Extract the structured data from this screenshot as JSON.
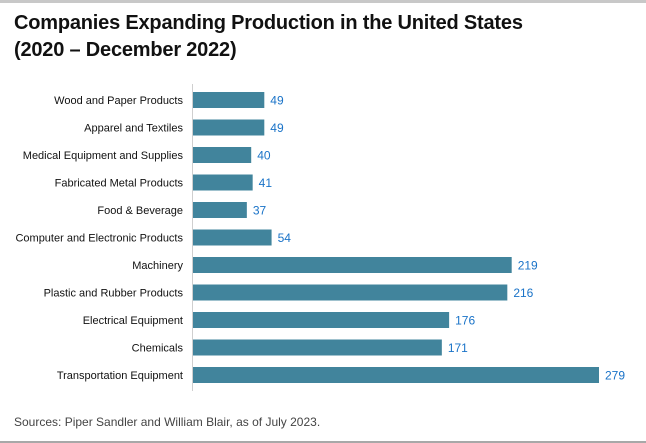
{
  "chart_data": {
    "type": "bar",
    "orientation": "horizontal",
    "title_line1": "Companies Expanding Production in the United States",
    "title_line2": "(2020 – December 2022)",
    "categories": [
      "Wood and Paper Products",
      "Apparel and Textiles",
      "Medical Equipment and Supplies",
      "Fabricated Metal Products",
      "Food & Beverage",
      "Computer and Electronic Products",
      "Machinery",
      "Plastic and Rubber Products",
      "Electrical Equipment",
      "Chemicals",
      "Transportation Equipment"
    ],
    "values": [
      49,
      49,
      40,
      41,
      37,
      54,
      219,
      216,
      176,
      171,
      279
    ],
    "xlim": [
      0,
      279
    ],
    "grid": false,
    "bar_color": "#41849c",
    "label_color": "#1a73c8",
    "source": "Sources: Piper Sandler and William Blair, as of July 2023."
  }
}
